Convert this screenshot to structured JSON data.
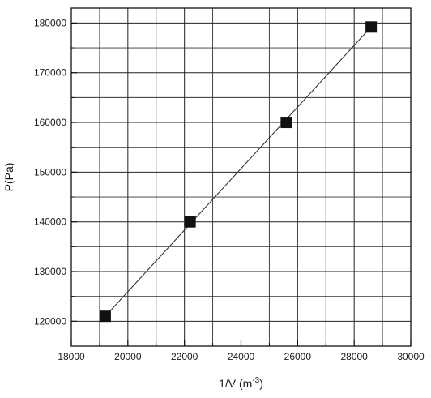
{
  "chart_data": {
    "type": "scatter",
    "title": "",
    "xlabel": "1/V (m",
    "xlabel_sup": "-3",
    "xlabel_close": ")",
    "ylabel": "P(Pa)",
    "xlim": [
      18000,
      30000
    ],
    "ylim": [
      115000,
      183000
    ],
    "x_ticks": [
      18000,
      20000,
      22000,
      24000,
      26000,
      28000,
      30000
    ],
    "x_tick_labels": [
      "18000",
      "20000",
      "22000",
      "24000",
      "26000",
      "28000",
      "30000"
    ],
    "x_minor_ticks": [
      19000,
      21000,
      23000,
      25000,
      27000,
      29000
    ],
    "y_ticks": [
      120000,
      130000,
      140000,
      150000,
      160000,
      170000,
      180000
    ],
    "y_tick_labels": [
      "120000",
      "130000",
      "140000",
      "150000",
      "160000",
      "170000",
      "180000"
    ],
    "y_minor_ticks": [
      115000,
      125000,
      135000,
      145000,
      155000,
      165000,
      175000
    ],
    "grid": true,
    "series": [
      {
        "x": [
          19200,
          22200,
          25600,
          28600
        ],
        "y": [
          121000,
          140000,
          160000,
          179200
        ],
        "marker": "square",
        "color": "#111111"
      }
    ],
    "fit_line": {
      "type": "linear",
      "x": [
        19200,
        28600
      ],
      "y": [
        121000,
        179200
      ],
      "color": "#333333"
    }
  }
}
